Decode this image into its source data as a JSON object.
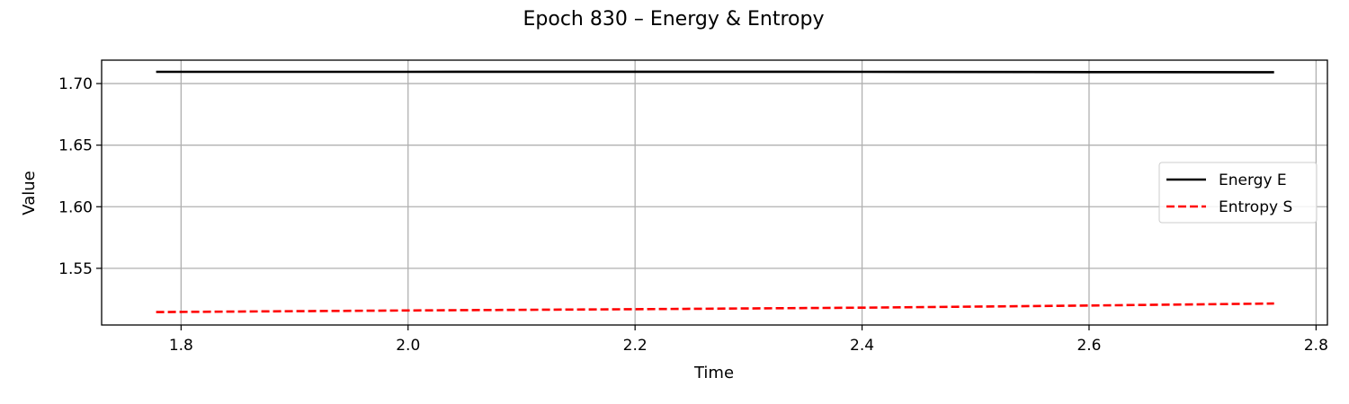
{
  "chart_data": {
    "type": "line",
    "title": "Epoch 830 – Energy & Entropy",
    "xlabel": "Time",
    "ylabel": "Value",
    "xlim": [
      1.73,
      2.81
    ],
    "ylim": [
      1.504,
      1.719
    ],
    "xticks": [
      1.8,
      2.0,
      2.2,
      2.4,
      2.6,
      2.8
    ],
    "xtick_labels": [
      "1.8",
      "2.0",
      "2.2",
      "2.4",
      "2.6",
      "2.8"
    ],
    "yticks": [
      1.55,
      1.6,
      1.65,
      1.7
    ],
    "ytick_labels": [
      "1.55",
      "1.60",
      "1.65",
      "1.70"
    ],
    "grid": true,
    "legend_position": "right",
    "series": [
      {
        "name": "Energy E",
        "color": "#000000",
        "style": "solid",
        "x": [
          1.778,
          2.0,
          2.2,
          2.4,
          2.6,
          2.763
        ],
        "y": [
          1.7095,
          1.7095,
          1.7096,
          1.7095,
          1.7093,
          1.7092
        ]
      },
      {
        "name": "Entropy S",
        "color": "#ff0000",
        "style": "dashed",
        "x": [
          1.778,
          2.0,
          2.2,
          2.4,
          2.6,
          2.763
        ],
        "y": [
          1.5145,
          1.5158,
          1.5168,
          1.5181,
          1.5198,
          1.5214
        ]
      }
    ]
  }
}
